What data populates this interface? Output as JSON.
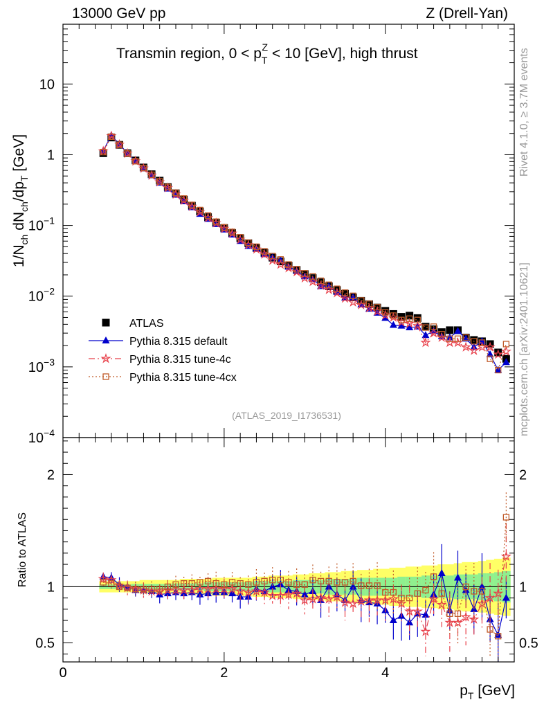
{
  "header": {
    "left": "13000 GeV pp",
    "right": "Z (Drell-Yan)"
  },
  "side_text": {
    "rivet": "Rivet 4.1.0, ≥ 3.7M events",
    "mcplots": "mcplots.cern.ch [arXiv:2401.10621]"
  },
  "chart_data": [
    {
      "type": "scatter",
      "panel": "main",
      "title": "Transmin region, 0 < pTZ < 10 [GeV], high thrust",
      "title_parts": {
        "pre": "Transmin region, 0 < p",
        "sup": "Z",
        "sub": "T",
        "post": " < 10 [GeV], high thrust"
      },
      "ylabel": "1/Nch dNch/dpT [GeV]",
      "yscale": "log",
      "ylim": [
        0.0001,
        70
      ],
      "xlim": [
        0,
        5.6
      ],
      "yticks": [
        "10",
        "1",
        "10^-1",
        "10^-2",
        "10^-3",
        "10^-4"
      ],
      "analysis_label": "(ATLAS_2019_I1736531)",
      "x": [
        0.5,
        0.6,
        0.7,
        0.8,
        0.9,
        1.0,
        1.1,
        1.2,
        1.3,
        1.4,
        1.5,
        1.6,
        1.7,
        1.8,
        1.9,
        2.0,
        2.1,
        2.2,
        2.3,
        2.4,
        2.5,
        2.6,
        2.7,
        2.8,
        2.9,
        3.0,
        3.1,
        3.2,
        3.3,
        3.4,
        3.5,
        3.6,
        3.7,
        3.8,
        3.9,
        4.0,
        4.1,
        4.2,
        4.3,
        4.4,
        4.5,
        4.6,
        4.7,
        4.8,
        4.9,
        5.0,
        5.1,
        5.2,
        5.3,
        5.4,
        5.5
      ],
      "legend": [
        "ATLAS",
        "Pythia 8.315 default",
        "Pythia 8.315 tune-4c",
        "Pythia 8.315 tune-4cx"
      ],
      "series": [
        {
          "name": "ATLAS",
          "color": "#000000",
          "values": [
            1.05,
            1.75,
            1.38,
            1.05,
            0.83,
            0.66,
            0.53,
            0.43,
            0.35,
            0.285,
            0.232,
            0.19,
            0.158,
            0.131,
            0.11,
            0.092,
            0.078,
            0.066,
            0.056,
            0.048,
            0.041,
            0.035,
            0.031,
            0.027,
            0.0235,
            0.0205,
            0.018,
            0.0157,
            0.0138,
            0.0122,
            0.0108,
            0.0096,
            0.0086,
            0.0077,
            0.0069,
            0.0062,
            0.0056,
            0.0051,
            0.0053,
            0.0049,
            0.0037,
            0.0034,
            0.0031,
            0.0033,
            0.0033,
            0.0026,
            0.0024,
            0.0023,
            0.0021,
            0.0016,
            0.0013
          ]
        },
        {
          "name": "Pythia 8.315 default",
          "color": "#0000cc",
          "values": [
            1.14,
            1.88,
            1.41,
            1.05,
            0.81,
            0.64,
            0.51,
            0.4,
            0.33,
            0.27,
            0.218,
            0.18,
            0.145,
            0.123,
            0.104,
            0.087,
            0.074,
            0.06,
            0.051,
            0.047,
            0.039,
            0.035,
            0.032,
            0.026,
            0.0227,
            0.019,
            0.0172,
            0.0138,
            0.0138,
            0.0114,
            0.0095,
            0.0096,
            0.0076,
            0.0066,
            0.0058,
            0.0049,
            0.0039,
            0.0038,
            0.0036,
            0.0037,
            0.0028,
            0.0032,
            0.0027,
            0.0026,
            0.0032,
            0.0025,
            0.0019,
            0.0023,
            0.0015,
            0.0009,
            0.00116
          ]
        },
        {
          "name": "Pythia 8.315 tune-4c",
          "color": "#e8404a",
          "values": [
            1.12,
            1.84,
            1.39,
            1.04,
            0.81,
            0.64,
            0.51,
            0.41,
            0.34,
            0.275,
            0.225,
            0.185,
            0.155,
            0.128,
            0.108,
            0.09,
            0.077,
            0.063,
            0.053,
            0.046,
            0.039,
            0.032,
            0.028,
            0.025,
            0.022,
            0.018,
            0.016,
            0.0141,
            0.0123,
            0.0111,
            0.0093,
            0.0082,
            0.0075,
            0.0068,
            0.0061,
            0.0054,
            0.005,
            0.0043,
            0.0041,
            0.0038,
            0.0022,
            0.003,
            0.0026,
            0.0022,
            0.0022,
            0.0019,
            0.0017,
            0.0019,
            0.0019,
            0.0015,
            0.00165
          ]
        },
        {
          "name": "Pythia 8.315 tune-4cx",
          "color": "#c05a28",
          "values": [
            1.09,
            1.8,
            1.38,
            1.04,
            0.81,
            0.65,
            0.52,
            0.42,
            0.35,
            0.29,
            0.24,
            0.195,
            0.165,
            0.138,
            0.113,
            0.094,
            0.081,
            0.068,
            0.057,
            0.05,
            0.043,
            0.037,
            0.033,
            0.028,
            0.024,
            0.021,
            0.019,
            0.0165,
            0.0145,
            0.0127,
            0.0112,
            0.0101,
            0.0087,
            0.0078,
            0.007,
            0.0059,
            0.0053,
            0.0046,
            0.0048,
            0.0046,
            0.0036,
            0.0037,
            0.0029,
            0.0025,
            0.0025,
            0.0026,
            0.0023,
            0.0022,
            0.0013,
            0.0009,
            0.0021
          ]
        }
      ]
    },
    {
      "type": "scatter",
      "panel": "ratio",
      "ylabel": "Ratio to ATLAS",
      "xlabel": "pT [GeV]",
      "xlim": [
        0,
        5.6
      ],
      "ylim": [
        0.33,
        2.33
      ],
      "xticks": [
        0,
        2,
        4
      ],
      "yticks": [
        0.5,
        1,
        2
      ],
      "x": [
        0.5,
        0.6,
        0.7,
        0.8,
        0.9,
        1.0,
        1.1,
        1.2,
        1.3,
        1.4,
        1.5,
        1.6,
        1.7,
        1.8,
        1.9,
        2.0,
        2.1,
        2.2,
        2.3,
        2.4,
        2.5,
        2.6,
        2.7,
        2.8,
        2.9,
        3.0,
        3.1,
        3.2,
        3.3,
        3.4,
        3.5,
        3.6,
        3.7,
        3.8,
        3.9,
        4.0,
        4.1,
        4.2,
        4.3,
        4.4,
        4.5,
        4.6,
        4.7,
        4.8,
        4.9,
        5.0,
        5.1,
        5.2,
        5.3,
        5.4,
        5.5
      ],
      "band_inner": [
        0.02,
        0.02,
        0.02,
        0.02,
        0.025,
        0.025,
        0.025,
        0.025,
        0.025,
        0.03,
        0.03,
        0.03,
        0.03,
        0.04,
        0.04,
        0.04,
        0.04,
        0.04,
        0.04,
        0.05,
        0.05,
        0.05,
        0.05,
        0.05,
        0.06,
        0.06,
        0.06,
        0.06,
        0.07,
        0.07,
        0.07,
        0.07,
        0.08,
        0.08,
        0.08,
        0.08,
        0.08,
        0.09,
        0.09,
        0.09,
        0.1,
        0.1,
        0.1,
        0.1,
        0.11,
        0.11,
        0.11,
        0.12,
        0.12,
        0.13,
        0.14
      ],
      "band_outer": [
        0.05,
        0.05,
        0.05,
        0.05,
        0.05,
        0.06,
        0.06,
        0.06,
        0.06,
        0.06,
        0.07,
        0.07,
        0.07,
        0.07,
        0.08,
        0.08,
        0.08,
        0.08,
        0.08,
        0.09,
        0.09,
        0.1,
        0.1,
        0.1,
        0.11,
        0.11,
        0.12,
        0.12,
        0.13,
        0.13,
        0.14,
        0.14,
        0.15,
        0.15,
        0.16,
        0.16,
        0.17,
        0.17,
        0.18,
        0.18,
        0.19,
        0.19,
        0.2,
        0.2,
        0.21,
        0.22,
        0.22,
        0.23,
        0.24,
        0.25,
        0.26
      ],
      "series": [
        {
          "name": "Pythia 8.315 default",
          "color": "#0000cc",
          "values": [
            1.09,
            1.08,
            1.02,
            1.0,
            0.97,
            0.97,
            0.96,
            0.93,
            0.94,
            0.95,
            0.94,
            0.95,
            0.93,
            0.94,
            0.95,
            0.95,
            0.94,
            0.91,
            0.91,
            0.98,
            0.96,
            1.0,
            1.02,
            0.97,
            0.96,
            0.93,
            0.96,
            0.88,
            1.0,
            0.93,
            0.88,
            1.0,
            0.88,
            0.86,
            0.85,
            0.79,
            0.7,
            0.74,
            0.68,
            0.76,
            0.75,
            0.93,
            1.12,
            0.79,
            1.08,
            0.97,
            0.8,
            1.0,
            0.71,
            0.57,
            0.9
          ]
        },
        {
          "name": "Pythia 8.315 tune-4c",
          "color": "#e8404a",
          "values": [
            1.07,
            1.06,
            1.01,
            0.99,
            0.98,
            0.97,
            0.96,
            0.96,
            0.97,
            0.97,
            0.97,
            0.97,
            0.98,
            0.98,
            0.98,
            0.98,
            0.98,
            0.96,
            0.95,
            0.96,
            0.95,
            0.92,
            0.92,
            0.93,
            0.94,
            0.88,
            0.89,
            0.9,
            0.89,
            0.91,
            0.86,
            0.85,
            0.87,
            0.88,
            0.88,
            0.88,
            0.89,
            0.85,
            0.78,
            0.78,
            0.6,
            0.89,
            0.84,
            0.68,
            0.68,
            0.73,
            0.71,
            0.85,
            0.9,
            0.94,
            1.27
          ]
        },
        {
          "name": "Pythia 8.315 tune-4cx",
          "color": "#c05a28",
          "values": [
            1.04,
            1.03,
            1.0,
            0.99,
            0.98,
            0.98,
            0.98,
            0.98,
            1.0,
            1.02,
            1.03,
            1.03,
            1.04,
            1.05,
            1.03,
            1.02,
            1.04,
            1.03,
            1.02,
            1.04,
            1.05,
            1.06,
            1.06,
            1.04,
            1.02,
            1.02,
            1.06,
            1.05,
            1.05,
            1.04,
            1.04,
            1.05,
            1.01,
            1.01,
            1.01,
            0.95,
            0.95,
            0.9,
            0.9,
            0.94,
            0.97,
            1.09,
            0.94,
            0.76,
            0.76,
            1.0,
            0.96,
            0.96,
            0.62,
            0.56,
            1.62
          ]
        }
      ]
    }
  ]
}
